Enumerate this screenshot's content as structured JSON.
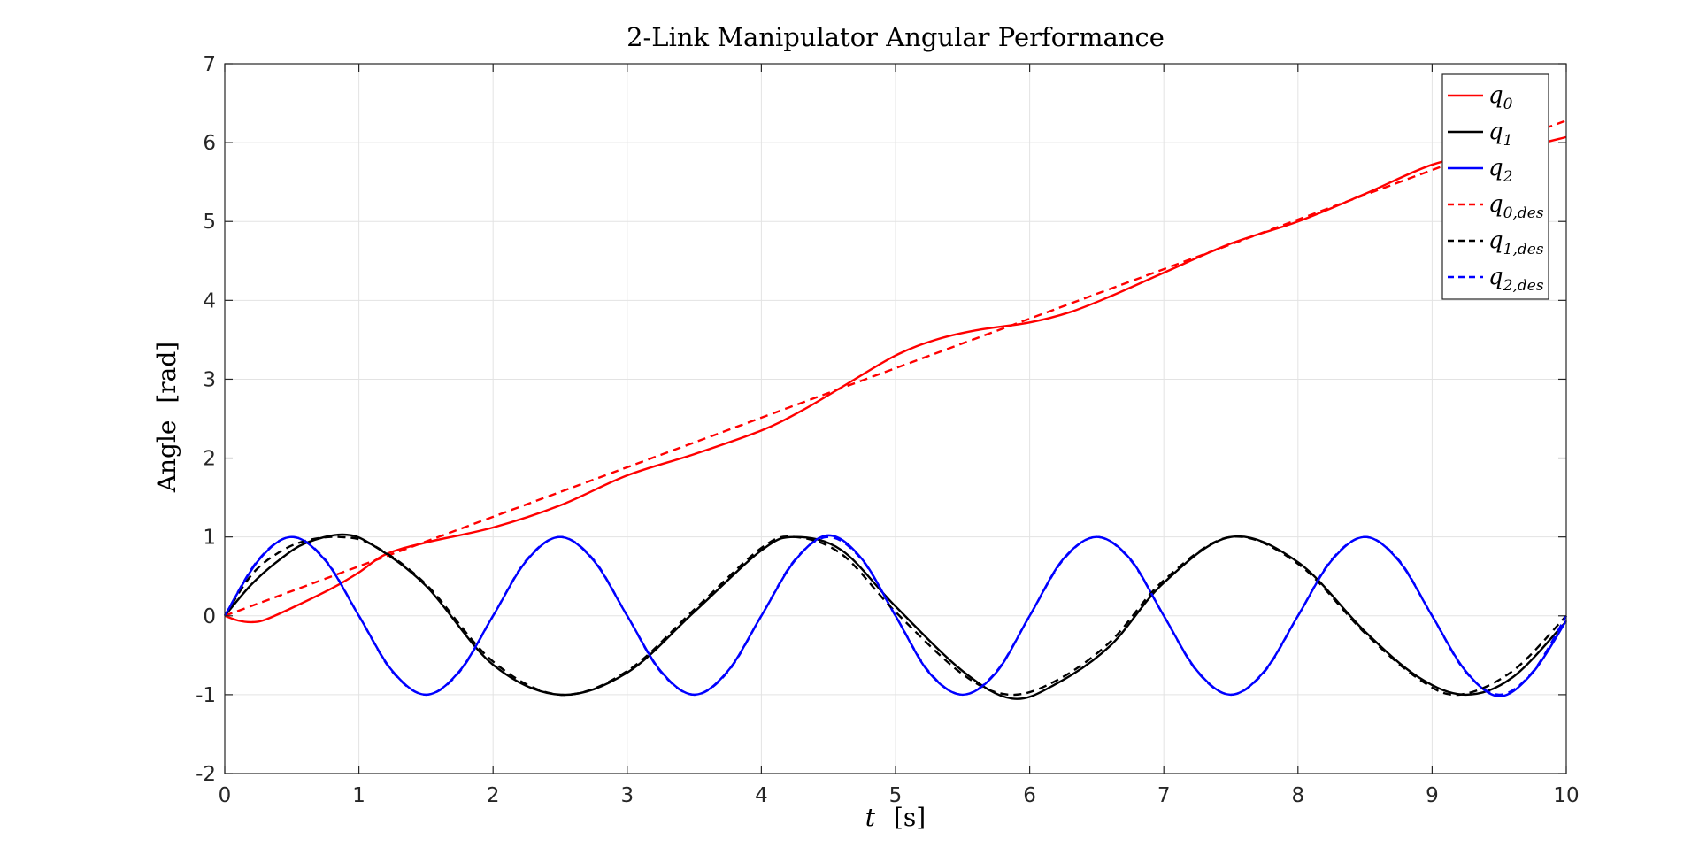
{
  "chart_data": {
    "type": "line",
    "title": "2-Link Manipulator Angular Performance",
    "xlabel": {
      "main": "t",
      "unit": "[s]"
    },
    "ylabel": {
      "main": "Angle",
      "unit": "[rad]"
    },
    "xlim": [
      0,
      10
    ],
    "ylim": [
      -2,
      7
    ],
    "xticks": [
      0,
      1,
      2,
      3,
      4,
      5,
      6,
      7,
      8,
      9,
      10
    ],
    "yticks": [
      -2,
      -1,
      0,
      1,
      2,
      3,
      4,
      5,
      6,
      7
    ],
    "grid": true,
    "legend_position": "top-right",
    "series": [
      {
        "name": "q_0",
        "base": "q",
        "sub": "0",
        "color": "#ff0000",
        "dash": "solid",
        "x": [
          0,
          0.1,
          0.2,
          0.3,
          0.5,
          0.8,
          1.0,
          1.2,
          1.5,
          2.0,
          2.5,
          3.0,
          3.5,
          4.0,
          4.3,
          4.6,
          5.0,
          5.3,
          5.6,
          6.0,
          6.3,
          6.6,
          7.0,
          7.5,
          8.0,
          8.5,
          9.0,
          9.4,
          9.7,
          10.0
        ],
        "y": [
          0,
          -0.06,
          -0.08,
          -0.05,
          0.1,
          0.35,
          0.55,
          0.78,
          0.93,
          1.12,
          1.4,
          1.78,
          2.05,
          2.35,
          2.6,
          2.9,
          3.3,
          3.5,
          3.62,
          3.72,
          3.85,
          4.05,
          4.35,
          4.72,
          5.0,
          5.35,
          5.72,
          5.86,
          5.95,
          6.07
        ]
      },
      {
        "name": "q_1",
        "base": "q",
        "sub": "1",
        "color": "#000000",
        "dash": "solid",
        "x": [
          0,
          0.2,
          0.4,
          0.6,
          0.88,
          1.1,
          1.5,
          2.0,
          2.5,
          3.0,
          3.5,
          4.0,
          4.25,
          4.6,
          5.0,
          5.5,
          5.87,
          6.2,
          6.6,
          7.0,
          7.5,
          8.0,
          8.5,
          8.9,
          9.25,
          9.6,
          10.0
        ],
        "y": [
          0,
          0.4,
          0.7,
          0.92,
          1.03,
          0.9,
          0.38,
          -0.62,
          -1.0,
          -0.72,
          0.05,
          0.83,
          1.0,
          0.83,
          0.12,
          -0.7,
          -1.05,
          -0.86,
          -0.38,
          0.42,
          1.0,
          0.68,
          -0.2,
          -0.78,
          -1.0,
          -0.78,
          -0.07
        ]
      },
      {
        "name": "q_2",
        "base": "q",
        "sub": "2",
        "color": "#0000ff",
        "dash": "solid",
        "x": [
          0,
          0.25,
          0.5,
          0.75,
          1.0,
          1.25,
          1.5,
          1.75,
          2.0,
          2.25,
          2.5,
          2.75,
          3.0,
          3.25,
          3.5,
          3.75,
          4.0,
          4.25,
          4.5,
          4.75,
          5.0,
          5.25,
          5.5,
          5.75,
          6.0,
          6.25,
          6.5,
          6.75,
          7.0,
          7.25,
          7.5,
          7.75,
          8.0,
          8.25,
          8.5,
          8.75,
          9.0,
          9.25,
          9.5,
          9.75,
          10.0
        ],
        "y": [
          0,
          0.7,
          1.0,
          0.7,
          0.0,
          -0.7,
          -1.0,
          -0.7,
          0.0,
          0.7,
          1.0,
          0.7,
          0.0,
          -0.7,
          -1.0,
          -0.7,
          0.0,
          0.7,
          1.02,
          0.72,
          0.0,
          -0.72,
          -1.0,
          -0.72,
          0.0,
          0.72,
          1.0,
          0.72,
          0.0,
          -0.7,
          -1.0,
          -0.7,
          0.0,
          0.7,
          1.0,
          0.7,
          0.0,
          -0.7,
          -1.02,
          -0.72,
          -0.06
        ]
      },
      {
        "name": "q_{0,des}",
        "base": "q",
        "sub": "0,des",
        "color": "#ff0000",
        "dash": "dashed",
        "x": [
          0,
          10
        ],
        "y": [
          0,
          6.28
        ]
      },
      {
        "name": "q_{1,des}",
        "base": "q",
        "sub": "1,des",
        "color": "#000000",
        "dash": "dashed",
        "x": [
          0,
          0.2,
          0.4,
          0.6,
          0.85,
          1.1,
          1.5,
          2.0,
          2.5,
          3.0,
          3.5,
          4.0,
          4.25,
          4.6,
          5.0,
          5.5,
          5.85,
          6.2,
          6.6,
          7.0,
          7.5,
          8.0,
          8.5,
          8.9,
          9.2,
          9.6,
          10.0
        ],
        "y": [
          0,
          0.52,
          0.8,
          0.95,
          1.0,
          0.9,
          0.4,
          -0.58,
          -1.0,
          -0.7,
          0.08,
          0.86,
          1.0,
          0.78,
          0.05,
          -0.74,
          -1.0,
          -0.82,
          -0.33,
          0.45,
          1.0,
          0.66,
          -0.22,
          -0.8,
          -1.0,
          -0.7,
          0.0
        ]
      },
      {
        "name": "q_{2,des}",
        "base": "q",
        "sub": "2,des",
        "color": "#0000ff",
        "dash": "dashed",
        "x": [
          0,
          0.25,
          0.5,
          0.75,
          1.0,
          1.25,
          1.5,
          1.75,
          2.0,
          2.25,
          2.5,
          2.75,
          3.0,
          3.25,
          3.5,
          3.75,
          4.0,
          4.25,
          4.5,
          4.75,
          5.0,
          5.25,
          5.5,
          5.75,
          6.0,
          6.25,
          6.5,
          6.75,
          7.0,
          7.25,
          7.5,
          7.75,
          8.0,
          8.25,
          8.5,
          8.75,
          9.0,
          9.25,
          9.5,
          9.75,
          10.0
        ],
        "y": [
          0,
          0.71,
          1.0,
          0.71,
          0.0,
          -0.71,
          -1.0,
          -0.71,
          0.0,
          0.71,
          1.0,
          0.71,
          0.0,
          -0.71,
          -1.0,
          -0.71,
          0.0,
          0.71,
          1.0,
          0.71,
          0.0,
          -0.71,
          -1.0,
          -0.71,
          0.0,
          0.71,
          1.0,
          0.71,
          0.0,
          -0.71,
          -1.0,
          -0.71,
          0.0,
          0.71,
          1.0,
          0.71,
          0.0,
          -0.71,
          -1.0,
          -0.71,
          0.0
        ]
      }
    ]
  }
}
